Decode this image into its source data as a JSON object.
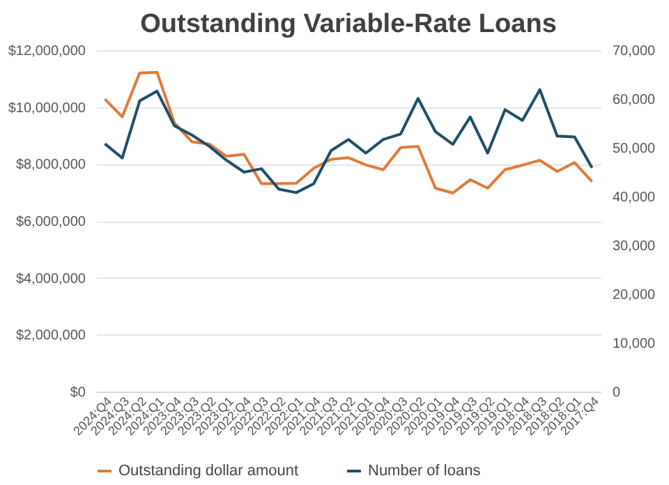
{
  "chart_data": {
    "type": "line",
    "title": "Outstanding Variable-Rate Loans",
    "categories": [
      "2024:Q4",
      "2024:Q3",
      "2024:Q2",
      "2024:Q1",
      "2023:Q4",
      "2023:Q3",
      "2023:Q2",
      "2023:Q1",
      "2022:Q4",
      "2022:Q3",
      "2022:Q2",
      "2022:Q1",
      "2021:Q4",
      "2021:Q3",
      "2021:Q2",
      "2021:Q1",
      "2020:Q4",
      "2020:Q3",
      "2020:Q2",
      "2020:Q1",
      "2019:Q4",
      "2019:Q3",
      "2019:Q2",
      "2019:Q1",
      "2018:Q4",
      "2018:Q3",
      "2018:Q2",
      "2018:Q1",
      "2017:Q4"
    ],
    "series": [
      {
        "name": "Outstanding dollar amount",
        "color": "#e07b39",
        "values": [
          10280000,
          9660000,
          11200000,
          11220000,
          9440000,
          8780000,
          8700000,
          8270000,
          8340000,
          7310000,
          7310000,
          7320000,
          7850000,
          8160000,
          8220000,
          7970000,
          7800000,
          8580000,
          8620000,
          7150000,
          6980000,
          7450000,
          7150000,
          7800000,
          7960000,
          8130000,
          7740000,
          8050000,
          7380000
        ]
      },
      {
        "name": "Number of loans",
        "color": "#1f4e67",
        "axis": "y2",
        "values": [
          50800,
          47900,
          59600,
          61600,
          54500,
          52600,
          50300,
          47400,
          45000,
          45700,
          41500,
          40800,
          42600,
          49400,
          51700,
          48900,
          51700,
          52800,
          60100,
          53300,
          50700,
          56300,
          48900,
          57800,
          55600,
          61900,
          52400,
          52200,
          45900
        ]
      }
    ],
    "ylim": [
      0,
      12000000
    ],
    "yticks": [
      {
        "value": 0,
        "label": "$0"
      },
      {
        "value": 2000000,
        "label": "$2,000,000"
      },
      {
        "value": 4000000,
        "label": "$4,000,000"
      },
      {
        "value": 6000000,
        "label": "$6,000,000"
      },
      {
        "value": 8000000,
        "label": "$8,000,000"
      },
      {
        "value": 10000000,
        "label": "$10,000,000"
      },
      {
        "value": 12000000,
        "label": "$12,000,000"
      }
    ],
    "y2lim": [
      0,
      70000
    ],
    "y2ticks": [
      0,
      {
        "value": 10000,
        "label": "10,000"
      },
      {
        "value": 20000,
        "label": "20,000"
      },
      {
        "value": 30000,
        "label": "30,000"
      },
      {
        "value": 40000,
        "label": "40,000"
      },
      {
        "value": 50000,
        "label": "50,000"
      },
      {
        "value": 60000,
        "label": "60,000"
      },
      {
        "value": 70000,
        "label": "70,000"
      }
    ],
    "grid": "y",
    "legend": "bottom",
    "marker": "none",
    "line_style": "solid"
  }
}
